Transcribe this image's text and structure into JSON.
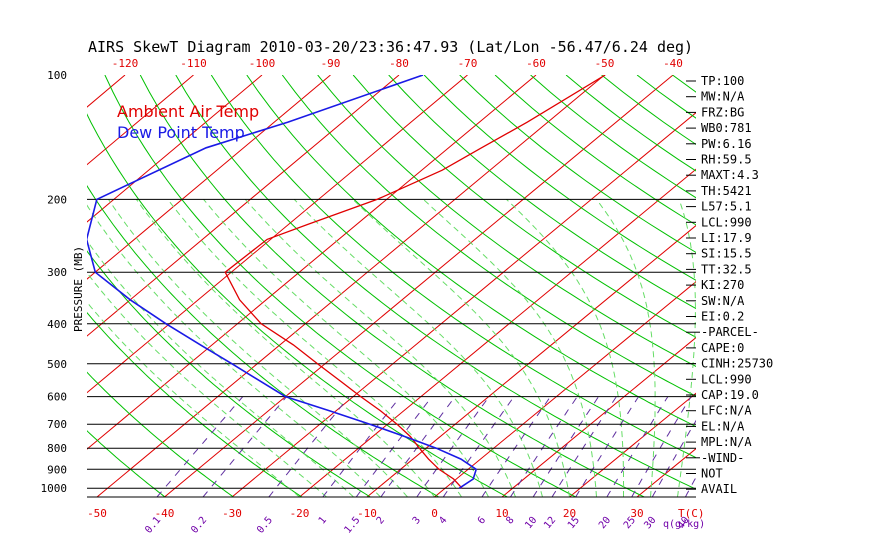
{
  "title": "AIRS SkewT Diagram 2010-03-20/23:36:47.93 (Lat/Lon -56.47/6.24 deg)",
  "colors": {
    "ambient": "#e00000",
    "dewpoint": "#1a1ae6",
    "dry_adiabat": "#00c000",
    "moist_adiabat": "#66dd66",
    "mixing_ratio": "#6030a0",
    "isotherm": "#e00000",
    "isobar": "#000000"
  },
  "chart_data": {
    "type": "line",
    "ylabel": "PRESSURE (MB)",
    "y_scale": "log",
    "ylim": [
      1050,
      100
    ],
    "pressure_ticks": [
      100,
      200,
      300,
      400,
      500,
      600,
      700,
      800,
      900,
      1000
    ],
    "top_temp_ticks": [
      -120,
      -110,
      -100,
      -90,
      -80,
      -70,
      -60,
      -50,
      -40
    ],
    "bottom_temp_ticks": [
      -50,
      -40,
      -30,
      -20,
      -10,
      0,
      10,
      20,
      30
    ],
    "bottom_temp_unit": "T(C)",
    "mixing_ratio_ticks": [
      "0.1",
      "0.2",
      "0.5",
      "1",
      "1.5",
      "2",
      "3",
      "4",
      "6",
      "8",
      "10",
      "12",
      "15",
      "20",
      "25",
      "30",
      "40"
    ],
    "mixing_ratio_unit": "q(g/kg)",
    "series": [
      {
        "name": "Ambient Air Temp",
        "color": "#e00000",
        "points": [
          {
            "p": 100,
            "t": -49.9
          },
          {
            "p": 130,
            "t": -53.0
          },
          {
            "p": 150,
            "t": -55.2
          },
          {
            "p": 170,
            "t": -57.0
          },
          {
            "p": 200,
            "t": -61.4
          },
          {
            "p": 230,
            "t": -67.2
          },
          {
            "p": 250,
            "t": -70.5
          },
          {
            "p": 300,
            "t": -70.9
          },
          {
            "p": 350,
            "t": -63.9
          },
          {
            "p": 400,
            "t": -56.5
          },
          {
            "p": 450,
            "t": -48.0
          },
          {
            "p": 500,
            "t": -41.1
          },
          {
            "p": 550,
            "t": -34.7
          },
          {
            "p": 600,
            "t": -28.9
          },
          {
            "p": 650,
            "t": -23.4
          },
          {
            "p": 700,
            "t": -18.6
          },
          {
            "p": 750,
            "t": -14.4
          },
          {
            "p": 800,
            "t": -11.0
          },
          {
            "p": 850,
            "t": -7.7
          },
          {
            "p": 900,
            "t": -4.3
          },
          {
            "p": 950,
            "t": -0.4
          },
          {
            "p": 1000,
            "t": 2.5
          }
        ]
      },
      {
        "name": "Dew Point Temp",
        "color": "#1a1ae6",
        "points": [
          {
            "p": 100,
            "t": -76.5
          },
          {
            "p": 130,
            "t": -88.0
          },
          {
            "p": 150,
            "t": -95.5
          },
          {
            "p": 200,
            "t": -102.5
          },
          {
            "p": 250,
            "t": -97.0
          },
          {
            "p": 300,
            "t": -90.0
          },
          {
            "p": 350,
            "t": -80.0
          },
          {
            "p": 400,
            "t": -70.5
          },
          {
            "p": 450,
            "t": -61.7
          },
          {
            "p": 500,
            "t": -53.7
          },
          {
            "p": 600,
            "t": -40.0
          },
          {
            "p": 650,
            "t": -30.9
          },
          {
            "p": 700,
            "t": -22.6
          },
          {
            "p": 750,
            "t": -15.2
          },
          {
            "p": 800,
            "t": -8.5
          },
          {
            "p": 850,
            "t": -2.9
          },
          {
            "p": 900,
            "t": 1.2
          },
          {
            "p": 950,
            "t": 2.5
          },
          {
            "p": 1000,
            "t": 2.1
          }
        ]
      }
    ]
  },
  "indices": [
    "TP:100",
    "MW:N/A",
    "FRZ:BG",
    "WB0:781",
    "PW:6.16",
    "RH:59.5",
    "MAXT:4.3",
    "TH:5421",
    "L57:5.1",
    "LCL:990",
    "LI:17.9",
    "SI:15.5",
    "TT:32.5",
    "KI:270",
    "SW:N/A",
    "EI:0.2",
    "-PARCEL-",
    "CAPE:0",
    "CINH:25730",
    "LCL:990",
    "CAP:19.0",
    "LFC:N/A",
    "EL:N/A",
    "MPL:N/A",
    "-WIND-",
    "NOT",
    "AVAIL"
  ]
}
